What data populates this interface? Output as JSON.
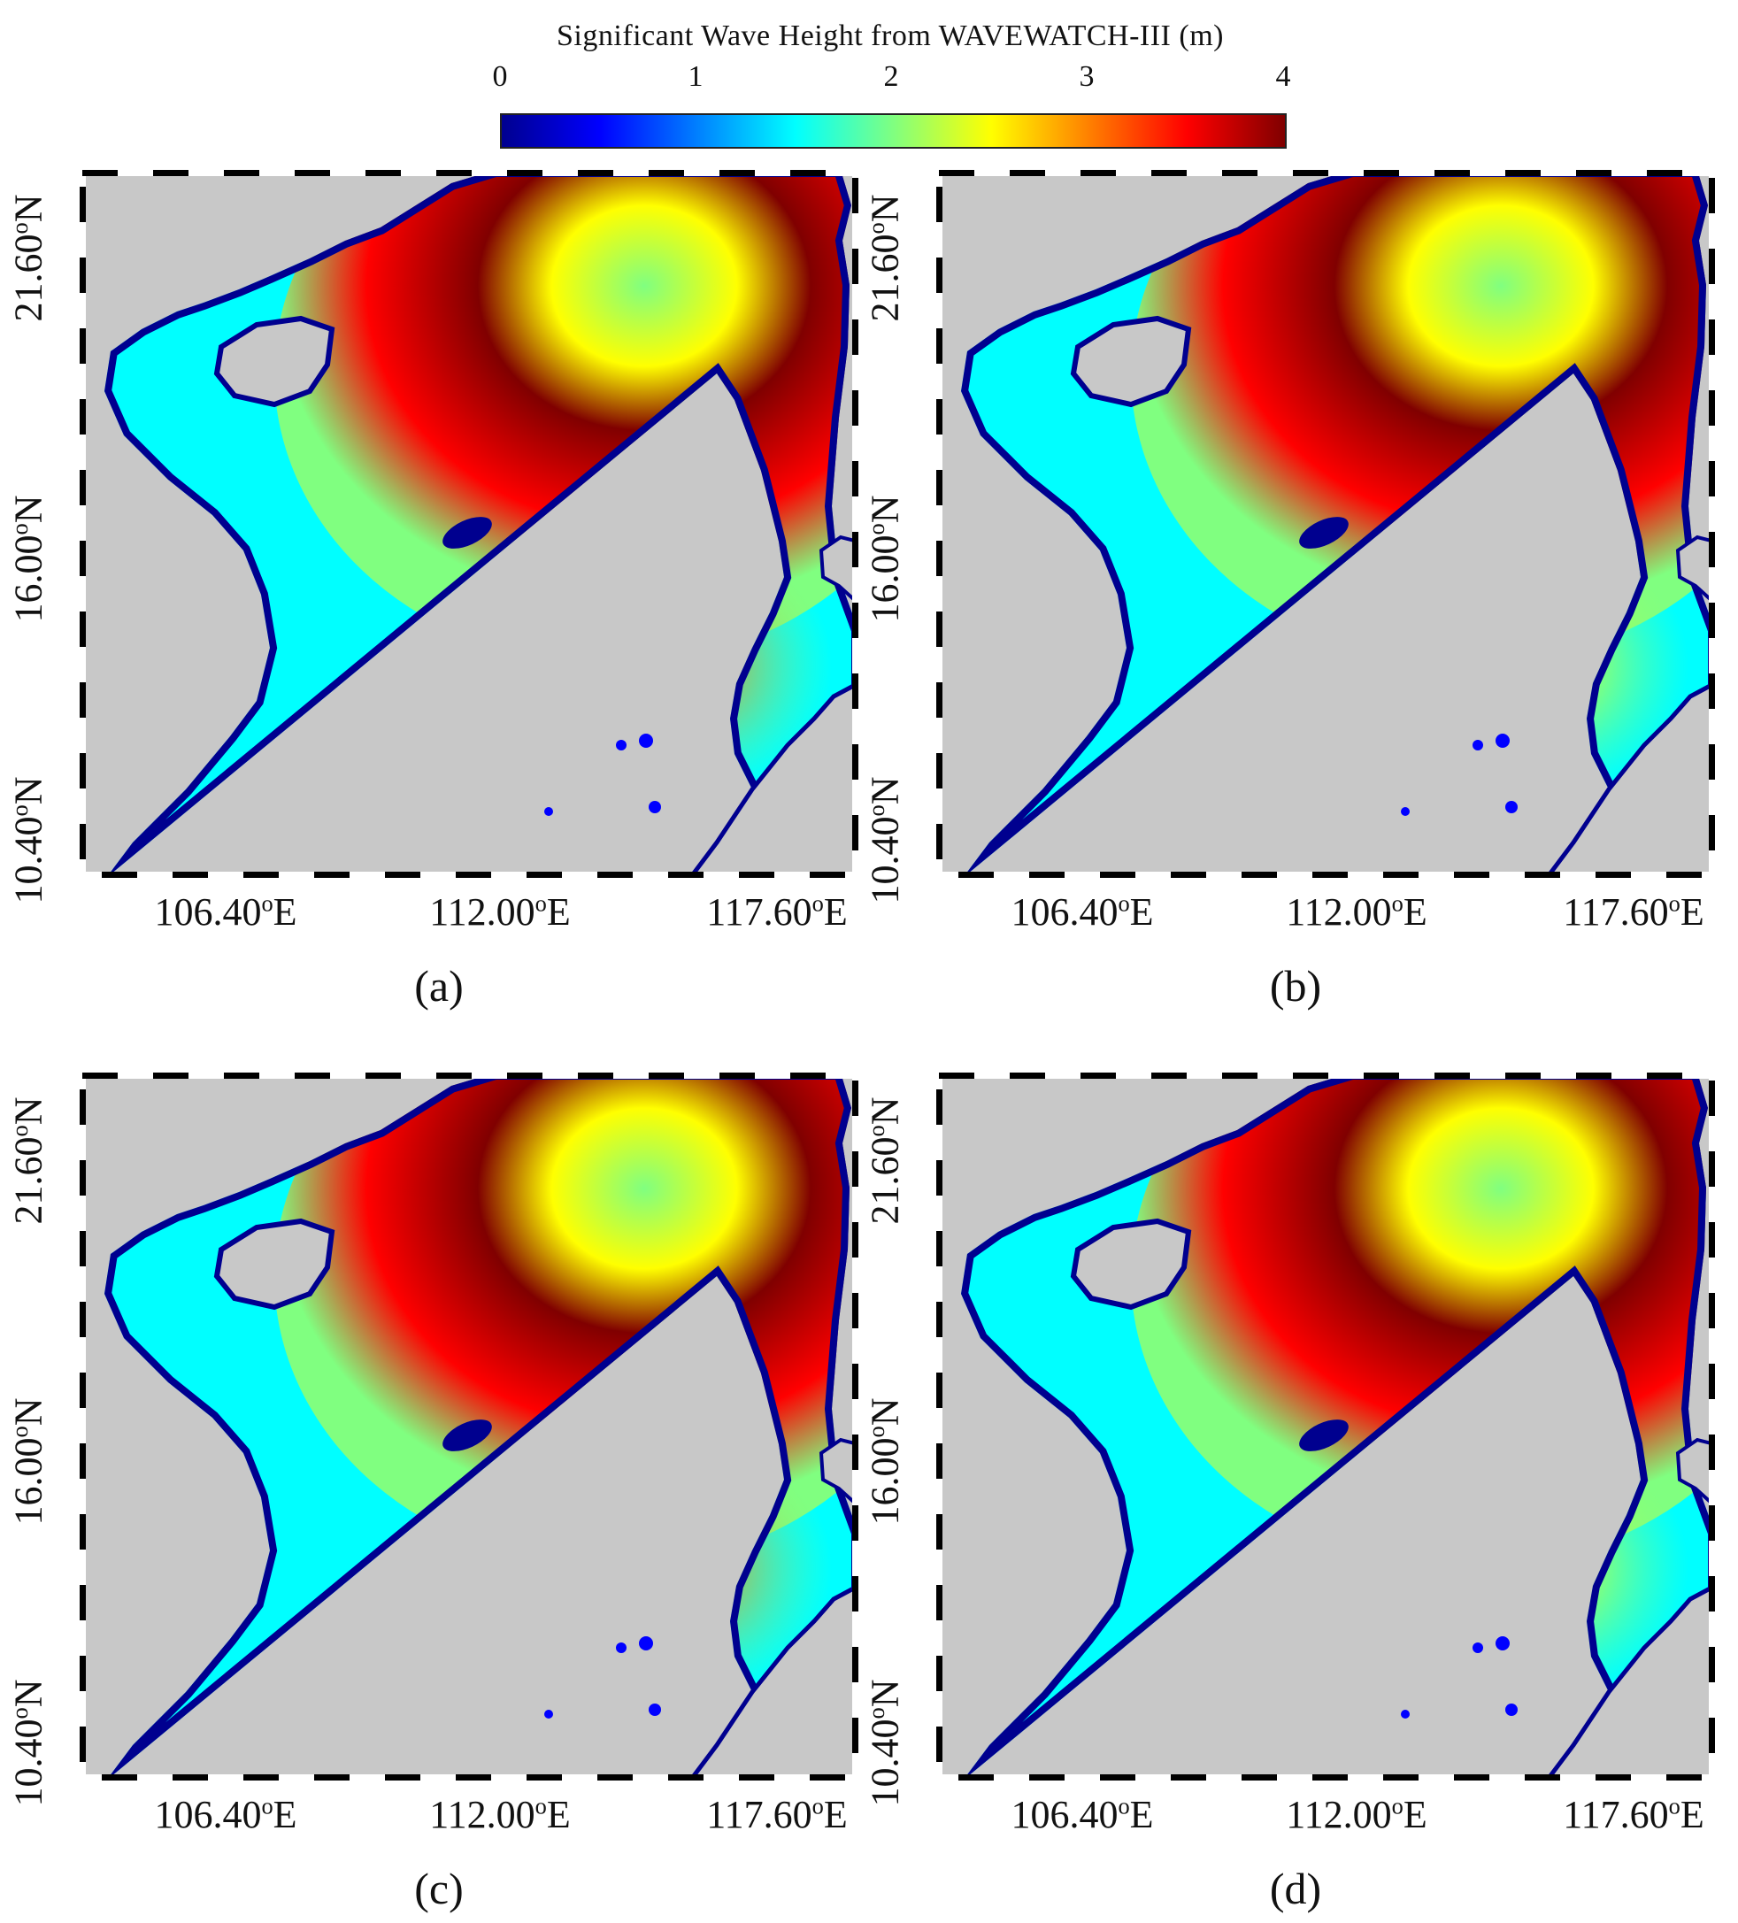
{
  "colorbar": {
    "title": "Significant Wave Height from WAVEWATCH-III (m)",
    "ticks": [
      "0",
      "1",
      "2",
      "3",
      "4"
    ],
    "min": 0,
    "max": 4,
    "colormap": [
      "#00008f",
      "#0000ff",
      "#0080ff",
      "#00ffff",
      "#80ff80",
      "#ffff00",
      "#ff8000",
      "#ff0000",
      "#800000"
    ]
  },
  "map": {
    "land_color": "#c8c8c8",
    "lat_labels": [
      "21.60",
      "16.00",
      "10.40"
    ],
    "lon_labels": [
      "106.40",
      "112.00",
      "117.60"
    ],
    "lat_suffix": "N",
    "lon_suffix": "E",
    "degree_symbol": "o"
  },
  "panels": [
    {
      "label": "(a)",
      "core_height_m": 4.0,
      "inner_low_m": 1.9,
      "south_high_m": 3.0
    },
    {
      "label": "(b)",
      "core_height_m": 3.9,
      "inner_low_m": 2.0,
      "south_high_m": 2.7
    },
    {
      "label": "(c)",
      "core_height_m": 4.0,
      "inner_low_m": 1.9,
      "south_high_m": 2.8
    },
    {
      "label": "(d)",
      "core_height_m": 3.9,
      "inner_low_m": 2.0,
      "south_high_m": 2.6
    }
  ]
}
